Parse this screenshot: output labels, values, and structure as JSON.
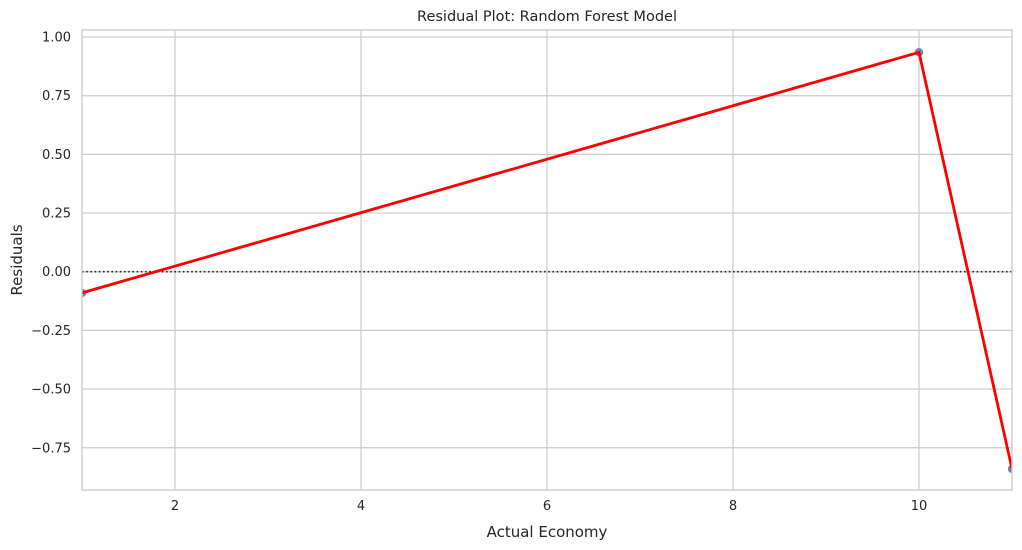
{
  "chart_data": {
    "type": "scatter",
    "title": "Residual Plot: Random Forest Model",
    "xlabel": "Actual Economy",
    "ylabel": "Residuals",
    "xlim": [
      1,
      11
    ],
    "ylim": [
      -0.93,
      1.03
    ],
    "xticks": [
      2,
      4,
      6,
      8,
      10
    ],
    "xtick_labels": [
      "2",
      "4",
      "6",
      "8",
      "10"
    ],
    "yticks": [
      -0.75,
      -0.5,
      -0.25,
      0.0,
      0.25,
      0.5,
      0.75,
      1.0
    ],
    "ytick_labels": [
      "−0.75",
      "−0.50",
      "−0.25",
      "0.00",
      "0.25",
      "0.50",
      "0.75",
      "1.00"
    ],
    "grid": true,
    "reference_line": {
      "y": 0,
      "style": "dotted",
      "color": "#262626"
    },
    "series": [
      {
        "kind": "points",
        "color": "#4c72b0",
        "x": [
          1,
          10,
          11
        ],
        "y": [
          -0.09,
          0.935,
          -0.84
        ]
      },
      {
        "kind": "line",
        "color": "#ff0000",
        "x": [
          1,
          10,
          11
        ],
        "y": [
          -0.09,
          0.935,
          -0.84
        ]
      }
    ]
  },
  "colors": {
    "background": "#ffffff",
    "grid": "#cccccc",
    "spine": "#cccccc",
    "text": "#262626",
    "points": "#4c72b0",
    "line": "#ff0000"
  }
}
